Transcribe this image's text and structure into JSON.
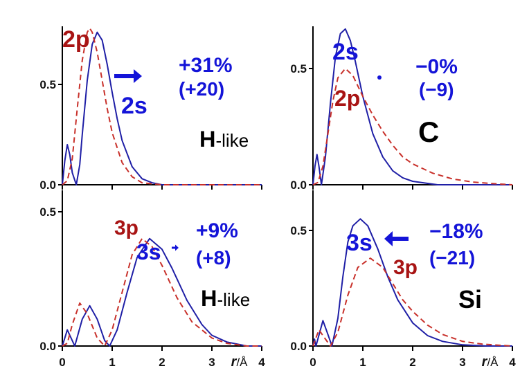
{
  "colors": {
    "s_line": "#1f1fa6",
    "p_line": "#c8302a",
    "s_label": "#1414d8",
    "p_label": "#a81414",
    "text": "#000000"
  },
  "chart_data": [
    {
      "type": "line",
      "panel": "top-left",
      "xlim": [
        0,
        4
      ],
      "ylim": [
        0,
        0.79
      ],
      "yticks": [
        "0.0",
        "0.5"
      ],
      "xticks": [],
      "annotations": {
        "p_label": "2p",
        "s_label": "2s",
        "percent": "+31%",
        "paren": "(+20)",
        "element_bold": "H",
        "element_rest": "-like",
        "arrow": "right"
      },
      "series": [
        {
          "name": "2s",
          "style": "solid",
          "x": [
            0,
            0.05,
            0.1,
            0.15,
            0.2,
            0.28,
            0.35,
            0.4,
            0.5,
            0.6,
            0.7,
            0.8,
            0.9,
            1.0,
            1.1,
            1.2,
            1.4,
            1.6,
            1.8,
            2.0,
            2.5,
            3.0,
            4.0
          ],
          "y": [
            0,
            0.12,
            0.2,
            0.15,
            0.06,
            0,
            0.1,
            0.25,
            0.52,
            0.7,
            0.76,
            0.72,
            0.6,
            0.46,
            0.33,
            0.22,
            0.09,
            0.03,
            0.01,
            0,
            0,
            0,
            0
          ]
        },
        {
          "name": "2p",
          "style": "dashed",
          "x": [
            0,
            0.1,
            0.2,
            0.3,
            0.4,
            0.5,
            0.55,
            0.6,
            0.7,
            0.8,
            0.9,
            1.0,
            1.2,
            1.4,
            1.6,
            2.0,
            3.0,
            4.0
          ],
          "y": [
            0,
            0.02,
            0.13,
            0.38,
            0.62,
            0.76,
            0.78,
            0.76,
            0.66,
            0.52,
            0.38,
            0.26,
            0.11,
            0.04,
            0.01,
            0,
            0,
            0
          ]
        }
      ]
    },
    {
      "type": "line",
      "panel": "top-right",
      "xlim": [
        0,
        4
      ],
      "ylim": [
        0,
        0.68
      ],
      "yticks": [
        "0.0",
        "0.5"
      ],
      "xticks": [],
      "annotations": {
        "p_label": "2p",
        "s_label": "2s",
        "percent": "−0%",
        "paren": "(−9)",
        "element_bold": "C",
        "element_rest": "",
        "arrow": "dot"
      },
      "series": [
        {
          "name": "2s",
          "style": "solid",
          "x": [
            0,
            0.04,
            0.08,
            0.12,
            0.17,
            0.25,
            0.35,
            0.45,
            0.55,
            0.65,
            0.75,
            0.85,
            1.0,
            1.2,
            1.4,
            1.6,
            1.8,
            2.0,
            2.5,
            3.0,
            4.0
          ],
          "y": [
            0,
            0.08,
            0.13,
            0.08,
            0,
            0.12,
            0.35,
            0.55,
            0.65,
            0.67,
            0.62,
            0.53,
            0.38,
            0.22,
            0.12,
            0.06,
            0.03,
            0.015,
            0,
            0,
            0
          ]
        },
        {
          "name": "2p",
          "style": "dashed",
          "x": [
            0,
            0.1,
            0.2,
            0.3,
            0.4,
            0.5,
            0.65,
            0.8,
            1.0,
            1.2,
            1.4,
            1.6,
            1.8,
            2.0,
            2.4,
            2.8,
            3.2,
            3.6,
            4.0
          ],
          "y": [
            0,
            0.01,
            0.08,
            0.22,
            0.36,
            0.46,
            0.5,
            0.47,
            0.38,
            0.3,
            0.23,
            0.17,
            0.12,
            0.09,
            0.05,
            0.025,
            0.012,
            0.005,
            0
          ]
        }
      ]
    },
    {
      "type": "line",
      "panel": "bottom-left",
      "xlim": [
        0,
        4
      ],
      "ylim": [
        0,
        0.58
      ],
      "yticks": [
        "0.0",
        "0.5"
      ],
      "xticks": [
        "0",
        "1",
        "2",
        "3",
        "4"
      ],
      "xlabel_italic": "r",
      "xlabel_unit": "/Å",
      "annotations": {
        "p_label": "3p",
        "s_label": "3s",
        "percent": "+9%",
        "paren": "(+8)",
        "element_bold": "H",
        "element_rest": "-like",
        "arrow": "right-small"
      },
      "series": [
        {
          "name": "3s",
          "style": "solid",
          "x": [
            0,
            0.1,
            0.25,
            0.4,
            0.55,
            0.7,
            0.85,
            0.95,
            1.1,
            1.3,
            1.5,
            1.75,
            2.0,
            2.2,
            2.5,
            2.8,
            3.0,
            3.3,
            3.7,
            4.0
          ],
          "y": [
            0,
            0.06,
            0,
            0.1,
            0.15,
            0.1,
            0.02,
            0,
            0.06,
            0.2,
            0.33,
            0.4,
            0.36,
            0.29,
            0.17,
            0.08,
            0.04,
            0.015,
            0,
            0
          ]
        },
        {
          "name": "3p",
          "style": "dashed",
          "x": [
            0,
            0.1,
            0.2,
            0.35,
            0.5,
            0.7,
            0.85,
            1.0,
            1.2,
            1.4,
            1.6,
            1.8,
            2.0,
            2.3,
            2.6,
            3.0,
            3.3,
            3.7,
            4.0
          ],
          "y": [
            0,
            0.01,
            0.08,
            0.16,
            0.12,
            0.03,
            0,
            0.06,
            0.2,
            0.34,
            0.4,
            0.37,
            0.3,
            0.18,
            0.09,
            0.03,
            0.01,
            0,
            0
          ]
        }
      ]
    },
    {
      "type": "line",
      "panel": "bottom-right",
      "xlim": [
        0,
        4
      ],
      "ylim": [
        0,
        0.67
      ],
      "yticks": [
        "0.0",
        "0.5"
      ],
      "xticks": [
        "0",
        "1",
        "2",
        "3",
        "4"
      ],
      "xlabel_italic": "r",
      "xlabel_unit": "/Å",
      "annotations": {
        "p_label": "3p",
        "s_label": "3s",
        "percent": "−18%",
        "paren": "(−21)",
        "element_bold": "Si",
        "element_rest": "",
        "arrow": "left"
      },
      "series": [
        {
          "name": "3s",
          "style": "solid",
          "x": [
            0,
            0.03,
            0.06,
            0.2,
            0.3,
            0.38,
            0.5,
            0.6,
            0.7,
            0.8,
            0.95,
            1.1,
            1.3,
            1.5,
            1.7,
            2.0,
            2.3,
            2.6,
            3.0,
            3.5,
            4.0
          ],
          "y": [
            0,
            0.03,
            0,
            0.11,
            0.05,
            0,
            0.12,
            0.3,
            0.45,
            0.52,
            0.55,
            0.52,
            0.42,
            0.3,
            0.2,
            0.1,
            0.045,
            0.02,
            0.005,
            0,
            0
          ]
        },
        {
          "name": "3p",
          "style": "dashed",
          "x": [
            0,
            0.12,
            0.25,
            0.35,
            0.5,
            0.7,
            0.9,
            1.15,
            1.4,
            1.6,
            1.8,
            2.0,
            2.3,
            2.6,
            3.0,
            3.4,
            4.0
          ],
          "y": [
            0,
            0.07,
            0.03,
            0,
            0.06,
            0.22,
            0.34,
            0.38,
            0.34,
            0.27,
            0.2,
            0.15,
            0.09,
            0.05,
            0.02,
            0.008,
            0
          ]
        }
      ]
    }
  ]
}
